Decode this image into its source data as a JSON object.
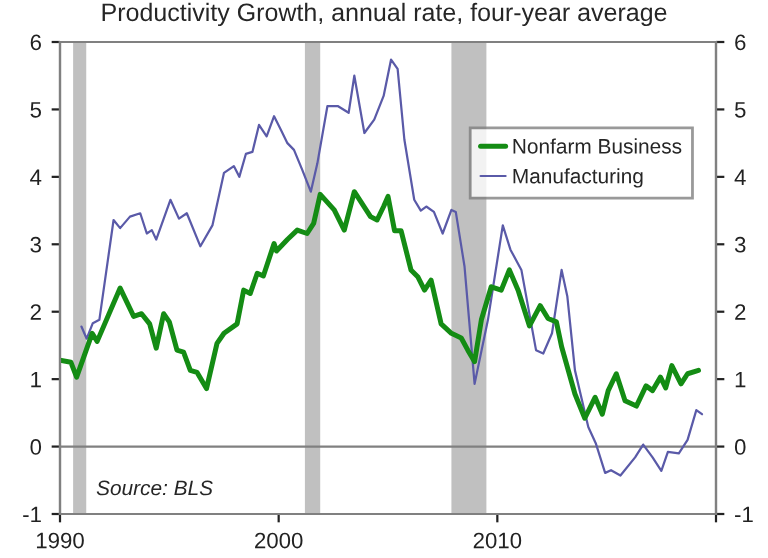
{
  "chart_data": {
    "type": "line",
    "title": "Productivity Growth, annual rate, four-year average",
    "annotations": [
      "Source: BLS"
    ],
    "xlim": [
      1990,
      2020
    ],
    "xticks": [
      1990,
      2000,
      2010,
      {
        "value": 2020,
        "label": null
      }
    ],
    "ylim": [
      -1,
      6
    ],
    "yticks": [
      -1,
      0,
      1,
      2,
      3,
      4,
      5,
      6
    ],
    "y2lim": [
      -1,
      6
    ],
    "y2ticks": [
      -1,
      0,
      1,
      2,
      3,
      4,
      5,
      6
    ],
    "legend": "top right",
    "grid": false,
    "marker": "none",
    "line_style": "solid",
    "ref_lines": [
      {
        "axis": "y",
        "value": 0,
        "color": "#808080"
      }
    ],
    "bands": [
      {
        "axis": "x",
        "from": 1990.6,
        "to": 1991.2,
        "color": "#c0c0c0"
      },
      {
        "axis": "x",
        "from": 2001.2,
        "to": 2001.9,
        "color": "#c0c0c0"
      },
      {
        "axis": "x",
        "from": 2007.9,
        "to": 2009.5,
        "color": "#c0c0c0"
      }
    ],
    "series": [
      {
        "name": "Nonfarm Business",
        "color": "#148c14",
        "x": [
          1990,
          1990.5,
          1990.76,
          1991.47,
          1991.7,
          1992.75,
          1993.37,
          1993.73,
          1994.1,
          1994.4,
          1994.74,
          1995,
          1995.35,
          1995.65,
          1995.96,
          1996.27,
          1996.7,
          1997.18,
          1997.5,
          1998.1,
          1998.4,
          1998.7,
          1999.02,
          1999.3,
          1999.79,
          1999.9,
          2000.4,
          2000.85,
          2001.3,
          2001.6,
          2001.9,
          2002.54,
          2003.0,
          2003.46,
          2004.2,
          2004.5,
          2004.8,
          2005.0,
          2005.3,
          2005.6,
          2006.05,
          2006.36,
          2006.67,
          2006.97,
          2007.43,
          2007.9,
          2008.35,
          2008.65,
          2008.96,
          2009.27,
          2009.72,
          2010.18,
          2010.55,
          2010.95,
          2011.47,
          2011.96,
          2012.32,
          2012.7,
          2012.94,
          2013.55,
          2014.0,
          2014.47,
          2014.8,
          2015.07,
          2015.44,
          2015.84,
          2016.36,
          2016.8,
          2017.1,
          2017.46,
          2017.7,
          2017.98,
          2018.4,
          2018.7,
          2019.2
        ],
        "values": [
          1.28,
          1.25,
          1.03,
          1.68,
          1.56,
          2.35,
          1.93,
          1.97,
          1.82,
          1.46,
          1.97,
          1.85,
          1.43,
          1.4,
          1.13,
          1.1,
          0.86,
          1.53,
          1.68,
          1.82,
          2.32,
          2.27,
          2.57,
          2.53,
          3.01,
          2.9,
          3.07,
          3.21,
          3.16,
          3.31,
          3.74,
          3.51,
          3.21,
          3.78,
          3.41,
          3.36,
          3.56,
          3.71,
          3.2,
          3.2,
          2.62,
          2.52,
          2.32,
          2.47,
          1.82,
          1.68,
          1.61,
          1.43,
          1.26,
          1.88,
          2.37,
          2.32,
          2.62,
          2.32,
          1.79,
          2.09,
          1.9,
          1.85,
          1.48,
          0.78,
          0.42,
          0.73,
          0.48,
          0.83,
          1.08,
          0.68,
          0.6,
          0.9,
          0.83,
          1.03,
          0.87,
          1.2,
          0.93,
          1.08,
          1.13
        ]
      },
      {
        "name": "Manufacturing",
        "color": "#5a5aa8",
        "x": [
          1990.98,
          1991.22,
          1991.5,
          1991.8,
          1992.45,
          1992.75,
          1993.2,
          1993.67,
          1993.97,
          1994.2,
          1994.4,
          1995.05,
          1995.44,
          1995.8,
          1996.42,
          1996.97,
          1997.5,
          1997.95,
          1998.2,
          1998.5,
          1998.8,
          1999.1,
          1999.45,
          1999.79,
          2000.1,
          2000.4,
          2000.7,
          2001.07,
          2001.47,
          2001.77,
          2002.23,
          2002.7,
          2003.2,
          2003.46,
          2003.92,
          2004.37,
          2004.8,
          2005.14,
          2005.44,
          2005.75,
          2006.2,
          2006.5,
          2006.75,
          2007.1,
          2007.5,
          2007.9,
          2008.1,
          2008.5,
          2008.96,
          2009.57,
          2010.25,
          2010.6,
          2011.1,
          2011.77,
          2012.1,
          2012.5,
          2012.94,
          2013.2,
          2013.55,
          2014.16,
          2014.5,
          2014.93,
          2015.2,
          2015.63,
          2016.3,
          2016.67,
          2017.1,
          2017.5,
          2017.8,
          2018.3,
          2018.7,
          2019.1,
          2019.36
        ],
        "values": [
          1.78,
          1.6,
          1.83,
          1.88,
          3.36,
          3.24,
          3.41,
          3.46,
          3.16,
          3.21,
          3.07,
          3.66,
          3.38,
          3.46,
          2.97,
          3.28,
          4.06,
          4.16,
          4.0,
          4.34,
          4.37,
          4.77,
          4.6,
          4.9,
          4.7,
          4.5,
          4.4,
          4.11,
          3.78,
          4.2,
          5.05,
          5.05,
          4.95,
          5.5,
          4.65,
          4.85,
          5.2,
          5.74,
          5.6,
          4.55,
          3.66,
          3.5,
          3.56,
          3.48,
          3.16,
          3.51,
          3.48,
          2.67,
          0.93,
          1.88,
          3.28,
          2.92,
          2.62,
          1.43,
          1.38,
          1.68,
          2.62,
          2.23,
          1.13,
          0.29,
          0.05,
          -0.39,
          -0.35,
          -0.43,
          -0.16,
          0.03,
          -0.16,
          -0.36,
          -0.08,
          -0.1,
          0.1,
          0.54,
          0.48
        ]
      }
    ]
  }
}
